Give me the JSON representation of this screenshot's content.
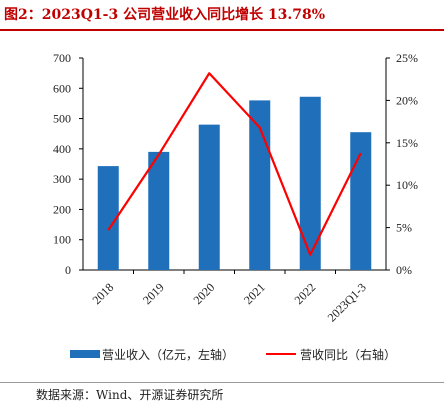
{
  "title": "图2：2023Q1-3 公司营业收入同比增长 13.78%",
  "source": "数据来源：Wind、开源证券研究所",
  "colors": {
    "bar": "#1f6fba",
    "line": "#ff0000",
    "title": "#c00000"
  },
  "chart_data": {
    "type": "bar+line",
    "categories": [
      "2018",
      "2019",
      "2020",
      "2021",
      "2022",
      "2023Q1-3"
    ],
    "series": [
      {
        "name": "营业收入（亿元，左轴）",
        "type": "bar",
        "axis": "left",
        "values": [
          343,
          390,
          480,
          560,
          572,
          455
        ]
      },
      {
        "name": "营收同比（右轴）",
        "type": "line",
        "axis": "right",
        "values": [
          4.7,
          13.6,
          23.2,
          16.8,
          1.8,
          13.78
        ]
      }
    ],
    "y_left": {
      "min": 0,
      "max": 700,
      "ticks": [
        "0",
        "100",
        "200",
        "300",
        "400",
        "500",
        "600",
        "700"
      ]
    },
    "y_right": {
      "min": 0,
      "max": 25,
      "ticks": [
        "0%",
        "5%",
        "10%",
        "15%",
        "20%",
        "25%"
      ]
    },
    "grid": false,
    "legend_position": "bottom"
  }
}
